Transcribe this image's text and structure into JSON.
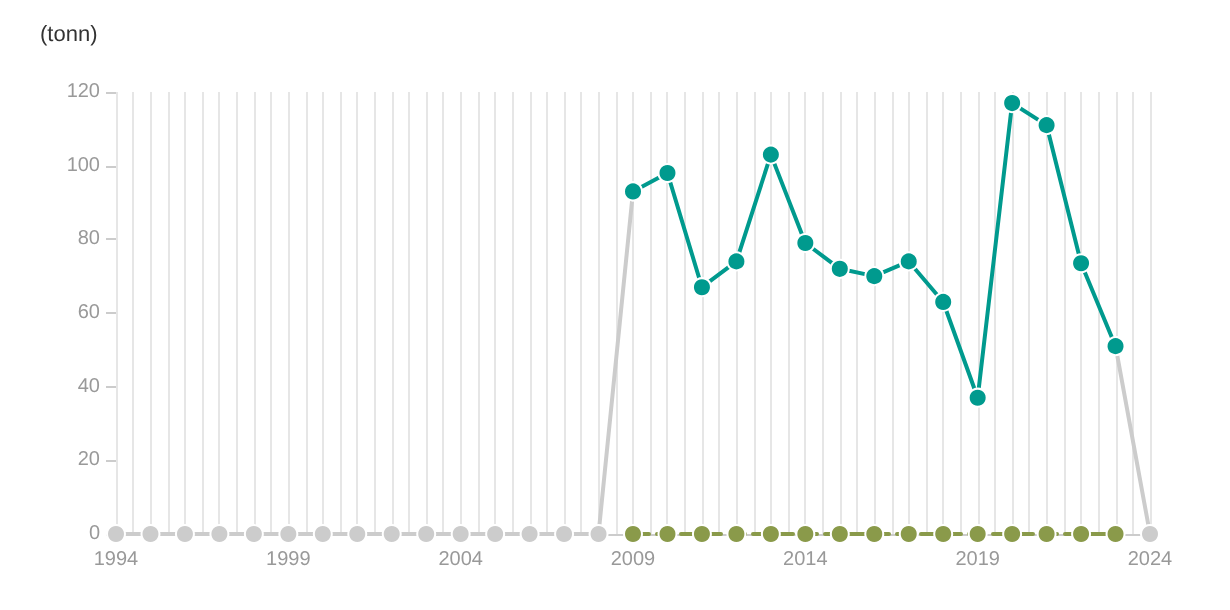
{
  "chart_data": {
    "type": "line",
    "ylabel": "(tonn)",
    "x": [
      1994,
      1995,
      1996,
      1997,
      1998,
      1999,
      2000,
      2001,
      2002,
      2003,
      2004,
      2005,
      2006,
      2007,
      2008,
      2009,
      2010,
      2011,
      2012,
      2013,
      2014,
      2015,
      2016,
      2017,
      2018,
      2019,
      2020,
      2021,
      2022,
      2023,
      2024
    ],
    "series": [
      {
        "color": "#cccccc",
        "values": [
          0,
          0,
          0,
          0,
          0,
          0,
          0,
          0,
          0,
          0,
          0,
          0,
          0,
          0,
          0,
          93,
          null,
          null,
          null,
          null,
          null,
          null,
          null,
          null,
          null,
          null,
          null,
          null,
          null,
          51,
          0
        ]
      },
      {
        "color": "#8a9a4a",
        "line_style": "dashed",
        "values": [
          null,
          null,
          null,
          null,
          null,
          null,
          null,
          null,
          null,
          null,
          null,
          null,
          null,
          null,
          null,
          0,
          0,
          0,
          0,
          0,
          0,
          0,
          0,
          0,
          0,
          0,
          0,
          0,
          0,
          0,
          null
        ]
      },
      {
        "color": "#009a8e",
        "values": [
          null,
          null,
          null,
          null,
          null,
          null,
          null,
          null,
          null,
          null,
          null,
          null,
          null,
          null,
          null,
          93,
          98,
          67,
          74,
          103,
          79,
          72,
          70,
          74,
          63,
          37,
          117,
          111,
          73.5,
          51,
          null
        ]
      }
    ],
    "xlim": [
      1994,
      2024
    ],
    "xticks": [
      1994,
      {
        "value": 1994.5,
        "label": null
      },
      {
        "value": 1995,
        "label": null
      },
      {
        "value": 1995.5,
        "label": null
      },
      {
        "value": 1996,
        "label": null
      },
      {
        "value": 1996.5,
        "label": null
      },
      {
        "value": 1997,
        "label": null
      },
      {
        "value": 1997.5,
        "label": null
      },
      {
        "value": 1998,
        "label": null
      },
      {
        "value": 1998.5,
        "label": null
      },
      1999,
      {
        "value": 1999.5,
        "label": null
      },
      {
        "value": 2000,
        "label": null
      },
      {
        "value": 2000.5,
        "label": null
      },
      {
        "value": 2001,
        "label": null
      },
      {
        "value": 2001.5,
        "label": null
      },
      {
        "value": 2002,
        "label": null
      },
      {
        "value": 2002.5,
        "label": null
      },
      {
        "value": 2003,
        "label": null
      },
      {
        "value": 2003.5,
        "label": null
      },
      2004,
      {
        "value": 2004.5,
        "label": null
      },
      {
        "value": 2005,
        "label": null
      },
      {
        "value": 2005.5,
        "label": null
      },
      {
        "value": 2006,
        "label": null
      },
      {
        "value": 2006.5,
        "label": null
      },
      {
        "value": 2007,
        "label": null
      },
      {
        "value": 2007.5,
        "label": null
      },
      {
        "value": 2008,
        "label": null
      },
      {
        "value": 2008.5,
        "label": null
      },
      2009,
      {
        "value": 2009.5,
        "label": null
      },
      {
        "value": 2010,
        "label": null
      },
      {
        "value": 2010.5,
        "label": null
      },
      {
        "value": 2011,
        "label": null
      },
      {
        "value": 2011.5,
        "label": null
      },
      {
        "value": 2012,
        "label": null
      },
      {
        "value": 2012.5,
        "label": null
      },
      {
        "value": 2013,
        "label": null
      },
      {
        "value": 2013.5,
        "label": null
      },
      2014,
      {
        "value": 2014.5,
        "label": null
      },
      {
        "value": 2015,
        "label": null
      },
      {
        "value": 2015.5,
        "label": null
      },
      {
        "value": 2016,
        "label": null
      },
      {
        "value": 2016.5,
        "label": null
      },
      {
        "value": 2017,
        "label": null
      },
      {
        "value": 2017.5,
        "label": null
      },
      {
        "value": 2018,
        "label": null
      },
      {
        "value": 2018.5,
        "label": null
      },
      2019,
      {
        "value": 2019.5,
        "label": null
      },
      {
        "value": 2020,
        "label": null
      },
      {
        "value": 2020.5,
        "label": null
      },
      {
        "value": 2021,
        "label": null
      },
      {
        "value": 2021.5,
        "label": null
      },
      {
        "value": 2022,
        "label": null
      },
      {
        "value": 2022.5,
        "label": null
      },
      {
        "value": 2023,
        "label": null
      },
      {
        "value": 2023.5,
        "label": null
      },
      2024
    ],
    "ylim": [
      0,
      120
    ],
    "yticks": [
      0,
      20,
      40,
      60,
      80,
      100,
      120
    ],
    "grid": "x",
    "marker": "circle"
  }
}
